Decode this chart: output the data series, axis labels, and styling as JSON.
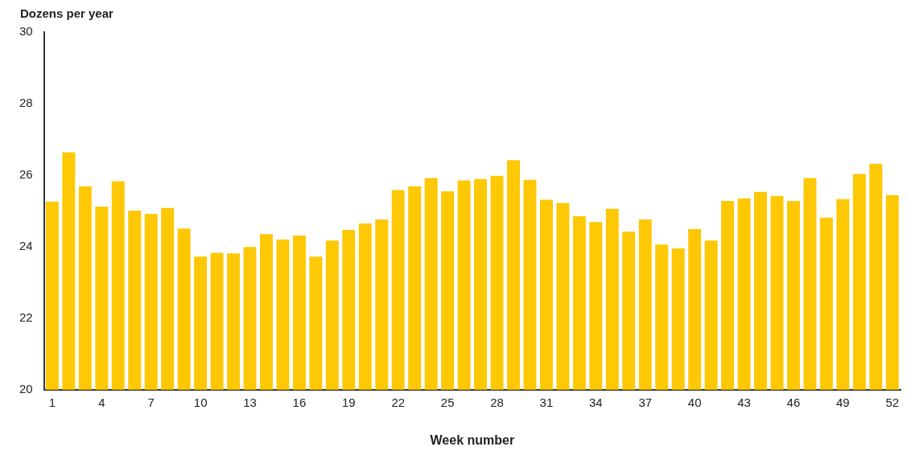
{
  "chart_data": {
    "type": "bar",
    "ylabel": "Dozens per year",
    "xlabel": "Week number",
    "categories": [
      "1",
      null,
      null,
      "4",
      null,
      null,
      "7",
      null,
      null,
      "10",
      null,
      null,
      "13",
      null,
      null,
      "16",
      null,
      null,
      "19",
      null,
      null,
      "22",
      null,
      null,
      "25",
      null,
      null,
      "28",
      null,
      null,
      "31",
      null,
      null,
      "34",
      null,
      null,
      "37",
      null,
      null,
      "40",
      null,
      null,
      "43",
      null,
      null,
      "46",
      null,
      null,
      "49",
      null,
      null,
      "52"
    ],
    "values": [
      25.26,
      26.64,
      25.69,
      25.12,
      25.83,
      25.01,
      24.92,
      25.08,
      24.51,
      23.72,
      23.83,
      23.81,
      23.99,
      24.35,
      24.2,
      24.31,
      23.72,
      24.17,
      24.47,
      24.65,
      24.76,
      25.58,
      25.69,
      25.92,
      25.55,
      25.85,
      25.89,
      25.98,
      26.42,
      25.87,
      25.31,
      25.22,
      24.85,
      24.69,
      25.06,
      24.42,
      24.76,
      24.06,
      23.95,
      24.49,
      24.17,
      25.28,
      25.35,
      25.53,
      25.42,
      25.28,
      25.92,
      24.81,
      25.33,
      26.03,
      26.32,
      25.44
    ],
    "color": "#fec805",
    "ylim": [
      20,
      30
    ],
    "yticks": [
      20,
      22,
      24,
      26,
      28,
      30
    ],
    "grid": false,
    "legend": false
  }
}
